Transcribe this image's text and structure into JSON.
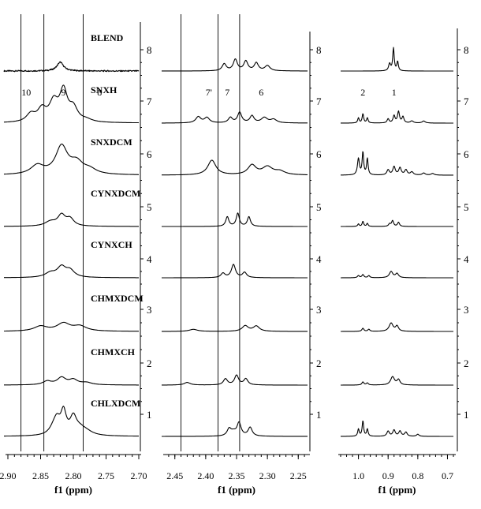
{
  "chart_data": [
    {
      "type": "line",
      "xlabel": "f1 (ppm)",
      "xlim": [
        2.9,
        2.7
      ],
      "xticks": [
        2.9,
        2.85,
        2.8,
        2.75,
        2.7
      ],
      "xtick_labels": [
        "2.90",
        "2.85",
        "2.80",
        "2.75",
        "2.70"
      ],
      "reference_lines": [
        2.88,
        2.845,
        2.785
      ],
      "offset_ticks": [
        "1",
        "2",
        "3",
        "4",
        "5",
        "6",
        "7",
        "8"
      ],
      "peak_labels": [
        {
          "text": "10",
          "x": 2.872,
          "trace": 7
        },
        {
          "text": "9",
          "x": 2.815,
          "trace": 7
        },
        {
          "text": "8",
          "x": 2.76,
          "trace": 7
        }
      ],
      "series": [
        {
          "name": "CHLXDCM",
          "offset": 1,
          "peaks": [
            [
              2.825,
              0.55,
              0.006
            ],
            [
              2.815,
              1.0,
              0.005
            ],
            [
              2.8,
              0.75,
              0.006
            ],
            [
              2.83,
              0.3,
              0.008
            ],
            [
              2.79,
              0.25,
              0.01
            ],
            [
              2.78,
              0.15,
              0.012
            ]
          ]
        },
        {
          "name": "CHMXCH",
          "offset": 2,
          "peaks": [
            [
              2.84,
              0.16,
              0.008
            ],
            [
              2.818,
              0.32,
              0.008
            ],
            [
              2.8,
              0.22,
              0.008
            ],
            [
              2.78,
              0.1,
              0.01
            ]
          ]
        },
        {
          "name": "CHMXDCM",
          "offset": 3,
          "peaks": [
            [
              2.85,
              0.22,
              0.012
            ],
            [
              2.815,
              0.35,
              0.012
            ],
            [
              2.79,
              0.22,
              0.012
            ]
          ]
        },
        {
          "name": "CYNXCH",
          "offset": 4,
          "peaks": [
            [
              2.835,
              0.2,
              0.01
            ],
            [
              2.818,
              0.45,
              0.008
            ],
            [
              2.805,
              0.3,
              0.008
            ]
          ]
        },
        {
          "name": "CYNXDCM",
          "offset": 5,
          "peaks": [
            [
              2.835,
              0.2,
              0.01
            ],
            [
              2.818,
              0.48,
              0.007
            ],
            [
              2.805,
              0.32,
              0.007
            ]
          ]
        },
        {
          "name": "SNXDCM",
          "offset": 6,
          "peaks": [
            [
              2.855,
              0.4,
              0.012
            ],
            [
              2.818,
              1.25,
              0.011
            ],
            [
              2.795,
              0.5,
              0.012
            ],
            [
              2.775,
              0.2,
              0.012
            ]
          ]
        },
        {
          "name": "SNXH",
          "offset": 7,
          "peaks": [
            [
              2.865,
              0.35,
              0.008
            ],
            [
              2.848,
              0.55,
              0.008
            ],
            [
              2.83,
              0.85,
              0.008
            ],
            [
              2.815,
              1.35,
              0.007
            ],
            [
              2.8,
              0.6,
              0.008
            ],
            [
              2.78,
              0.1,
              0.01
            ]
          ]
        },
        {
          "name": "BLEND",
          "offset": 8,
          "peaks": [
            [
              2.82,
              0.4,
              0.006
            ]
          ]
        }
      ]
    },
    {
      "type": "line",
      "xlabel": "f1 (ppm)",
      "xlim": [
        2.465,
        2.235
      ],
      "xticks": [
        2.45,
        2.4,
        2.35,
        2.3,
        2.25
      ],
      "xtick_labels": [
        "2.45",
        "2.40",
        "2.35",
        "2.30",
        "2.25"
      ],
      "reference_lines": [
        2.44,
        2.38,
        2.345
      ],
      "offset_ticks": [
        "1",
        "2",
        "3",
        "4",
        "5",
        "6",
        "7",
        "8"
      ],
      "peak_labels": [
        {
          "text": "7'",
          "x": 2.395,
          "trace": 7
        },
        {
          "text": "7",
          "x": 2.365,
          "trace": 7
        },
        {
          "text": "6",
          "x": 2.31,
          "trace": 7
        }
      ],
      "series": [
        {
          "name": "CHLXDCM",
          "offset": 1,
          "peaks": [
            [
              2.362,
              0.4,
              0.004
            ],
            [
              2.346,
              0.75,
              0.004
            ],
            [
              2.328,
              0.5,
              0.004
            ],
            [
              2.355,
              0.2,
              0.005
            ]
          ]
        },
        {
          "name": "CHMXCH",
          "offset": 2,
          "peaks": [
            [
              2.43,
              0.15,
              0.006
            ],
            [
              2.368,
              0.35,
              0.004
            ],
            [
              2.35,
              0.55,
              0.004
            ],
            [
              2.335,
              0.35,
              0.004
            ]
          ]
        },
        {
          "name": "CHMXDCM",
          "offset": 3,
          "peaks": [
            [
              2.42,
              0.12,
              0.008
            ],
            [
              2.336,
              0.32,
              0.006
            ],
            [
              2.318,
              0.3,
              0.006
            ]
          ]
        },
        {
          "name": "CYNXCH",
          "offset": 4,
          "peaks": [
            [
              2.372,
              0.25,
              0.004
            ],
            [
              2.355,
              0.75,
              0.004
            ],
            [
              2.337,
              0.3,
              0.004
            ]
          ]
        },
        {
          "name": "CYNXDCM",
          "offset": 5,
          "peaks": [
            [
              2.365,
              0.55,
              0.003
            ],
            [
              2.348,
              0.75,
              0.003
            ],
            [
              2.33,
              0.55,
              0.003
            ]
          ]
        },
        {
          "name": "SNXDCM",
          "offset": 6,
          "peaks": [
            [
              2.39,
              0.85,
              0.008
            ],
            [
              2.325,
              0.55,
              0.008
            ],
            [
              2.3,
              0.45,
              0.01
            ],
            [
              2.28,
              0.2,
              0.01
            ]
          ]
        },
        {
          "name": "SNXH",
          "offset": 7,
          "peaks": [
            [
              2.412,
              0.35,
              0.005
            ],
            [
              2.398,
              0.3,
              0.005
            ],
            [
              2.36,
              0.3,
              0.004
            ],
            [
              2.345,
              0.6,
              0.004
            ],
            [
              2.325,
              0.4,
              0.004
            ],
            [
              2.305,
              0.3,
              0.006
            ],
            [
              2.29,
              0.2,
              0.006
            ]
          ]
        },
        {
          "name": "BLEND",
          "offset": 8,
          "peaks": [
            [
              2.37,
              0.4,
              0.004
            ],
            [
              2.352,
              0.65,
              0.004
            ],
            [
              2.335,
              0.55,
              0.004
            ],
            [
              2.318,
              0.45,
              0.004
            ],
            [
              2.3,
              0.3,
              0.005
            ]
          ]
        }
      ]
    },
    {
      "type": "line",
      "xlabel": "f1 (ppm)",
      "xlim": [
        1.06,
        0.68
      ],
      "xticks": [
        1.0,
        0.9,
        0.8,
        0.7
      ],
      "xtick_labels": [
        "1.0",
        "0.9",
        "0.8",
        "0.7"
      ],
      "reference_lines": [],
      "offset_ticks": [
        "1",
        "2",
        "3",
        "4",
        "5",
        "6",
        "7",
        "8"
      ],
      "peak_labels": [
        {
          "text": "2",
          "x": 0.985,
          "trace": 7
        },
        {
          "text": "1",
          "x": 0.88,
          "trace": 7
        }
      ],
      "series": [
        {
          "name": "CHLXDCM",
          "offset": 1,
          "peaks": [
            [
              1.0,
              0.35,
              0.003
            ],
            [
              0.985,
              0.75,
              0.003
            ],
            [
              0.97,
              0.35,
              0.003
            ],
            [
              0.9,
              0.25,
              0.005
            ],
            [
              0.88,
              0.3,
              0.005
            ],
            [
              0.86,
              0.25,
              0.005
            ],
            [
              0.84,
              0.2,
              0.005
            ],
            [
              0.8,
              0.1,
              0.005
            ]
          ]
        },
        {
          "name": "CHMXCH",
          "offset": 2,
          "peaks": [
            [
              0.985,
              0.15,
              0.004
            ],
            [
              0.97,
              0.1,
              0.004
            ],
            [
              0.885,
              0.4,
              0.008
            ],
            [
              0.865,
              0.25,
              0.006
            ]
          ]
        },
        {
          "name": "CHMXDCM",
          "offset": 3,
          "peaks": [
            [
              0.985,
              0.15,
              0.004
            ],
            [
              0.965,
              0.1,
              0.004
            ],
            [
              0.89,
              0.4,
              0.008
            ],
            [
              0.87,
              0.25,
              0.006
            ]
          ]
        },
        {
          "name": "CYNXCH",
          "offset": 4,
          "peaks": [
            [
              1.0,
              0.1,
              0.004
            ],
            [
              0.985,
              0.15,
              0.004
            ],
            [
              0.965,
              0.1,
              0.004
            ],
            [
              0.89,
              0.3,
              0.007
            ],
            [
              0.87,
              0.2,
              0.006
            ]
          ]
        },
        {
          "name": "CYNXDCM",
          "offset": 5,
          "peaks": [
            [
              1.0,
              0.12,
              0.003
            ],
            [
              0.985,
              0.25,
              0.003
            ],
            [
              0.97,
              0.15,
              0.003
            ],
            [
              0.895,
              0.12,
              0.004
            ],
            [
              0.885,
              0.28,
              0.004
            ],
            [
              0.865,
              0.2,
              0.004
            ]
          ]
        },
        {
          "name": "SNXDCM",
          "offset": 6,
          "peaks": [
            [
              1.0,
              0.8,
              0.004
            ],
            [
              0.985,
              1.1,
              0.003
            ],
            [
              0.97,
              0.8,
              0.003
            ],
            [
              0.9,
              0.25,
              0.005
            ],
            [
              0.88,
              0.4,
              0.005
            ],
            [
              0.86,
              0.35,
              0.005
            ],
            [
              0.84,
              0.25,
              0.005
            ],
            [
              0.82,
              0.15,
              0.006
            ],
            [
              0.78,
              0.1,
              0.006
            ],
            [
              0.75,
              0.08,
              0.006
            ]
          ]
        },
        {
          "name": "SNXH",
          "offset": 7,
          "peaks": [
            [
              1.0,
              0.25,
              0.003
            ],
            [
              0.985,
              0.45,
              0.003
            ],
            [
              0.97,
              0.25,
              0.003
            ],
            [
              0.9,
              0.2,
              0.004
            ],
            [
              0.88,
              0.35,
              0.004
            ],
            [
              0.865,
              0.55,
              0.004
            ],
            [
              0.85,
              0.3,
              0.004
            ],
            [
              0.82,
              0.1,
              0.006
            ],
            [
              0.78,
              0.1,
              0.006
            ]
          ]
        },
        {
          "name": "BLEND",
          "offset": 8,
          "peaks": [
            [
              0.895,
              0.35,
              0.004
            ],
            [
              0.882,
              1.1,
              0.003
            ],
            [
              0.868,
              0.45,
              0.003
            ]
          ]
        }
      ]
    }
  ]
}
